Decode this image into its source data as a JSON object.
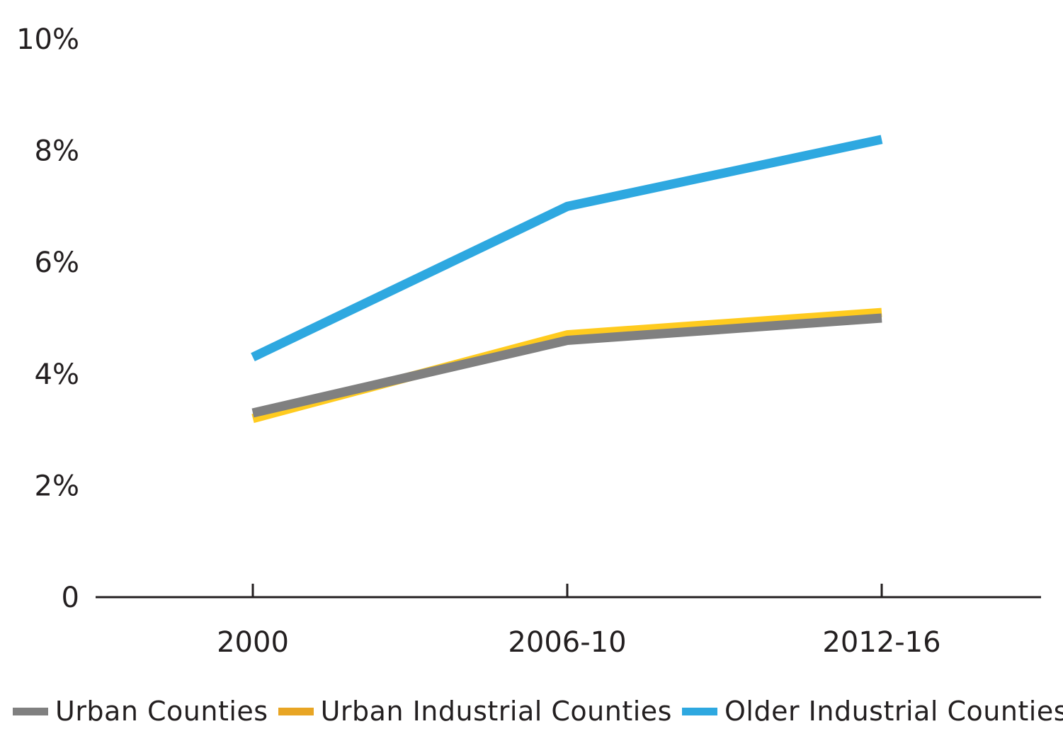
{
  "chart_data": {
    "type": "line",
    "title": "",
    "xlabel": "",
    "ylabel": "",
    "categories": [
      "2000",
      "2006-10",
      "2012-16"
    ],
    "ylim": [
      0,
      10
    ],
    "y_ticks": [
      {
        "value": 0,
        "label": "0"
      },
      {
        "value": 2,
        "label": "2%"
      },
      {
        "value": 4,
        "label": "4%"
      },
      {
        "value": 6,
        "label": "6%"
      },
      {
        "value": 8,
        "label": "8%"
      },
      {
        "value": 10,
        "label": "10%"
      }
    ],
    "grid": false,
    "legend_position": "bottom",
    "series": [
      {
        "name": "Urban Industrial Counties",
        "values": [
          3.2,
          4.7,
          5.1
        ],
        "line_color": "#FFCB1F",
        "legend_color": "#E8A524"
      },
      {
        "name": "Urban Counties",
        "values": [
          3.3,
          4.6,
          5.0
        ],
        "line_color": "#808080",
        "legend_color": "#808080"
      },
      {
        "name": "Older Industrial Counties",
        "values": [
          4.3,
          7.0,
          8.2
        ],
        "line_color": "#2EA8E0",
        "legend_color": "#2EA8E0"
      }
    ],
    "legend_order": [
      "Urban Counties",
      "Urban Industrial Counties",
      "Older Industrial Counties"
    ]
  }
}
